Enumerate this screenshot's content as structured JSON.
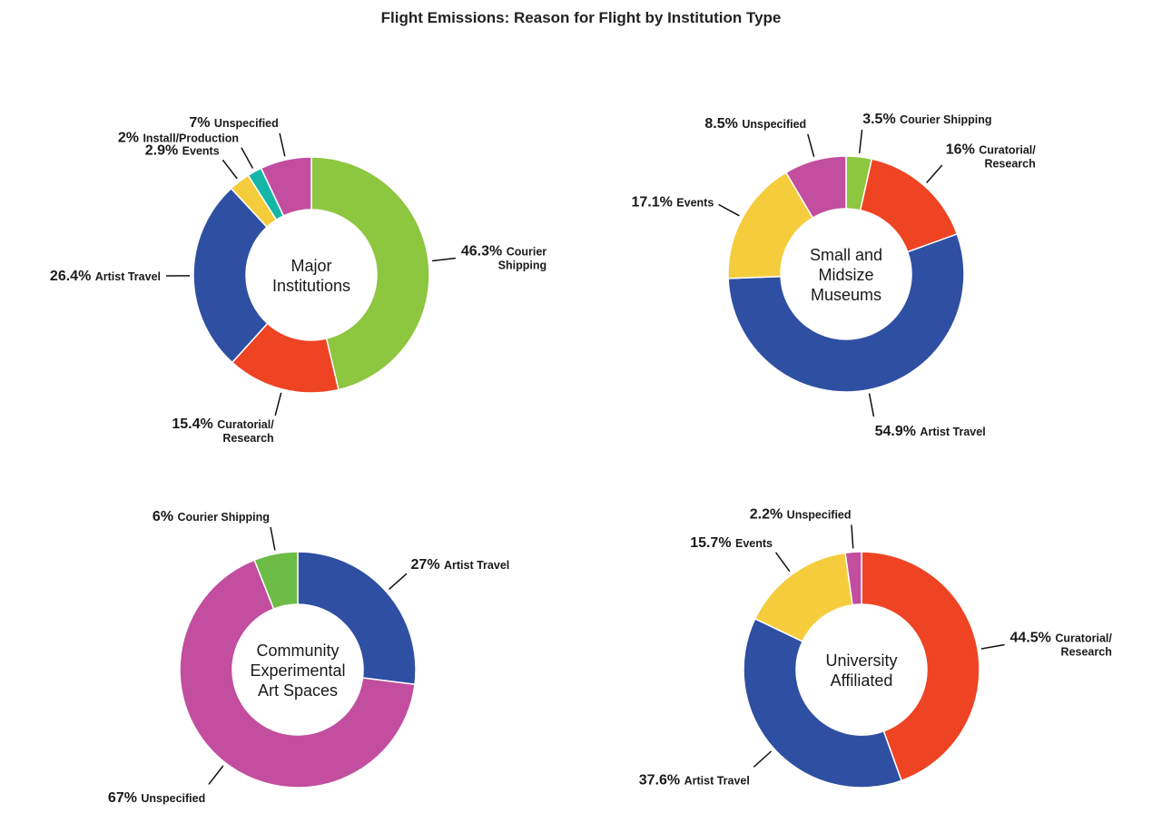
{
  "title": "Flight Emissions: Reason for Flight by Institution Type",
  "chart_data": [
    {
      "type": "pie",
      "title_lines": [
        "Major",
        "Institutions"
      ],
      "segments": [
        {
          "category": "Courier Shipping",
          "label_lines": [
            "Courier",
            "Shipping"
          ],
          "label": "46.3%",
          "value": 46.3,
          "color": "#8dc63f"
        },
        {
          "category": "Curatorial/Research",
          "label_lines": [
            "Curatorial/",
            "Research"
          ],
          "label": "15.4%",
          "value": 15.4,
          "color": "#ee4424"
        },
        {
          "category": "Artist Travel",
          "label_lines": [
            "Artist Travel"
          ],
          "label": "26.4%",
          "value": 26.4,
          "color": "#2e4fa2"
        },
        {
          "category": "Events",
          "label_lines": [
            "Events"
          ],
          "label": "2.9%",
          "value": 2.9,
          "color": "#f5cd3c"
        },
        {
          "category": "Install/Production",
          "label_lines": [
            "Install/Production"
          ],
          "label": "2%",
          "value": 2,
          "color": "#15b5a8"
        },
        {
          "category": "Unspecified",
          "label_lines": [
            "Unspecified"
          ],
          "label": "7%",
          "value": 7,
          "color": "#c34d9e"
        }
      ]
    },
    {
      "type": "pie",
      "title_lines": [
        "Small and",
        "Midsize",
        "Museums"
      ],
      "segments": [
        {
          "category": "Courier Shipping",
          "label_lines": [
            "Courier Shipping"
          ],
          "label": "3.5%",
          "value": 3.5,
          "color": "#8dc63f"
        },
        {
          "category": "Curatorial/Research",
          "label_lines": [
            "Curatorial/",
            "Research"
          ],
          "label": "16%",
          "value": 16,
          "color": "#ee4424"
        },
        {
          "category": "Artist Travel",
          "label_lines": [
            "Artist Travel"
          ],
          "label": "54.9%",
          "value": 54.9,
          "color": "#2e4fa2"
        },
        {
          "category": "Events",
          "label_lines": [
            "Events"
          ],
          "label": "17.1%",
          "value": 17.1,
          "color": "#f5cd3c"
        },
        {
          "category": "Unspecified",
          "label_lines": [
            "Unspecified"
          ],
          "label": "8.5%",
          "value": 8.5,
          "color": "#c34d9e"
        }
      ]
    },
    {
      "type": "pie",
      "title_lines": [
        "Community",
        "Experimental",
        "Art Spaces"
      ],
      "segments": [
        {
          "category": "Artist Travel",
          "label_lines": [
            "Artist Travel"
          ],
          "label": "27%",
          "value": 27,
          "color": "#2e4fa2"
        },
        {
          "category": "Unspecified",
          "label_lines": [
            "Unspecified"
          ],
          "label": "67%",
          "value": 67,
          "color": "#c34d9e"
        },
        {
          "category": "Courier Shipping",
          "label_lines": [
            "Courier Shipping"
          ],
          "label": "6%",
          "value": 6,
          "color": "#6cbc45"
        }
      ]
    },
    {
      "type": "pie",
      "title_lines": [
        "University",
        "Affiliated"
      ],
      "segments": [
        {
          "category": "Curatorial/Research",
          "label_lines": [
            "Curatorial/",
            "Research"
          ],
          "label": "44.5%",
          "value": 44.5,
          "color": "#ee4424"
        },
        {
          "category": "Artist Travel",
          "label_lines": [
            "Artist Travel"
          ],
          "label": "37.6%",
          "value": 37.6,
          "color": "#2e4fa2"
        },
        {
          "category": "Events",
          "label_lines": [
            "Events"
          ],
          "label": "15.7%",
          "value": 15.7,
          "color": "#f5cd3c"
        },
        {
          "category": "Unspecified",
          "label_lines": [
            "Unspecified"
          ],
          "label": "2.2%",
          "value": 2.2,
          "color": "#c34d9e"
        }
      ]
    }
  ]
}
